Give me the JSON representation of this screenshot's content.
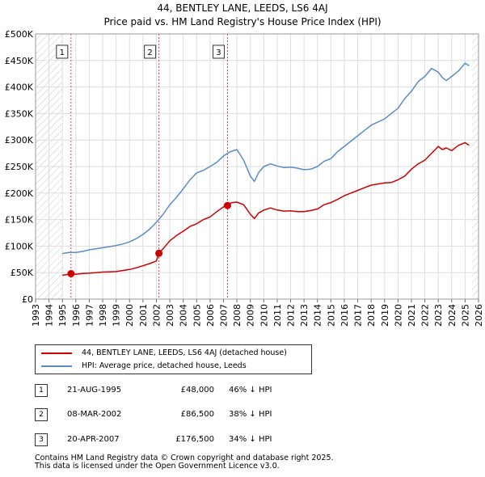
{
  "title_line1": "44, BENTLEY LANE, LEEDS, LS6 4AJ",
  "title_line2": "Price paid vs. HM Land Registry's House Price Index (HPI)",
  "chart_data": {
    "type": "line",
    "title": "Price paid vs. HM Land Registry's House Price Index (HPI)",
    "xlim": [
      1993,
      2026
    ],
    "ylim": [
      0,
      500000
    ],
    "x_ticks": [
      1993,
      1994,
      1995,
      1996,
      1997,
      1998,
      1999,
      2000,
      2001,
      2002,
      2003,
      2004,
      2005,
      2006,
      2007,
      2008,
      2009,
      2010,
      2011,
      2012,
      2013,
      2014,
      2015,
      2016,
      2017,
      2018,
      2019,
      2020,
      2021,
      2022,
      2023,
      2024,
      2025,
      2026
    ],
    "y_ticks": [
      {
        "value": 0,
        "label": "£0"
      },
      {
        "value": 50000,
        "label": "£50K"
      },
      {
        "value": 100000,
        "label": "£100K"
      },
      {
        "value": 150000,
        "label": "£150K"
      },
      {
        "value": 200000,
        "label": "£200K"
      },
      {
        "value": 250000,
        "label": "£250K"
      },
      {
        "value": 300000,
        "label": "£300K"
      },
      {
        "value": 350000,
        "label": "£350K"
      },
      {
        "value": 400000,
        "label": "£400K"
      },
      {
        "value": 450000,
        "label": "£450K"
      },
      {
        "value": 500000,
        "label": "£500K"
      }
    ],
    "hatched_before": 1995.0,
    "hatched_after": 2025.5,
    "series": [
      {
        "name": "44, BENTLEY LANE, LEEDS, LS6 4AJ (detached house)",
        "color": "#cc0000",
        "x": [
          1995.0,
          1995.3,
          1995.64,
          1996.0,
          1996.5,
          1997.0,
          1997.5,
          1998.0,
          1998.5,
          1999.0,
          1999.5,
          2000.0,
          2000.5,
          2001.0,
          2001.5,
          2002.0,
          2002.19,
          2002.5,
          2003.0,
          2003.5,
          2004.0,
          2004.5,
          2005.0,
          2005.5,
          2006.0,
          2006.5,
          2007.0,
          2007.3,
          2007.6,
          2008.0,
          2008.5,
          2009.0,
          2009.3,
          2009.6,
          2010.0,
          2010.5,
          2011.0,
          2011.5,
          2012.0,
          2012.5,
          2013.0,
          2013.5,
          2014.0,
          2014.5,
          2015.0,
          2015.5,
          2016.0,
          2016.5,
          2017.0,
          2017.5,
          2018.0,
          2018.5,
          2019.0,
          2019.5,
          2020.0,
          2020.5,
          2021.0,
          2021.5,
          2022.0,
          2022.5,
          2023.0,
          2023.3,
          2023.6,
          2024.0,
          2024.5,
          2025.0,
          2025.3
        ],
        "values": [
          45000,
          46000,
          48000,
          47000,
          48500,
          49000,
          50000,
          51000,
          51500,
          52000,
          54000,
          56000,
          59000,
          63000,
          67000,
          72000,
          86500,
          95000,
          110000,
          120000,
          128000,
          137000,
          142000,
          150000,
          155000,
          165000,
          174000,
          176500,
          182000,
          183000,
          178000,
          160000,
          152000,
          162000,
          168000,
          172000,
          168000,
          166000,
          166500,
          165000,
          165000,
          167000,
          170000,
          178000,
          182000,
          188000,
          195000,
          200000,
          205000,
          210000,
          215000,
          217000,
          219000,
          220000,
          225000,
          232000,
          245000,
          255000,
          262000,
          275000,
          288000,
          282000,
          285000,
          280000,
          290000,
          295000,
          290000
        ]
      },
      {
        "name": "HPI: Average price, detached house, Leeds",
        "color": "#5b8cc3",
        "x": [
          1995.0,
          1995.5,
          1996.0,
          1996.5,
          1997.0,
          1997.5,
          1998.0,
          1998.5,
          1999.0,
          1999.5,
          2000.0,
          2000.5,
          2001.0,
          2001.5,
          2002.0,
          2002.5,
          2003.0,
          2003.5,
          2004.0,
          2004.5,
          2005.0,
          2005.5,
          2006.0,
          2006.5,
          2007.0,
          2007.5,
          2008.0,
          2008.5,
          2009.0,
          2009.3,
          2009.6,
          2010.0,
          2010.5,
          2011.0,
          2011.5,
          2012.0,
          2012.5,
          2013.0,
          2013.5,
          2014.0,
          2014.5,
          2015.0,
          2015.5,
          2016.0,
          2016.5,
          2017.0,
          2017.5,
          2018.0,
          2018.5,
          2019.0,
          2019.5,
          2020.0,
          2020.5,
          2021.0,
          2021.5,
          2022.0,
          2022.5,
          2023.0,
          2023.3,
          2023.6,
          2024.0,
          2024.5,
          2025.0,
          2025.3
        ],
        "values": [
          86000,
          88000,
          88000,
          90000,
          93000,
          95000,
          97000,
          99000,
          101000,
          104000,
          108000,
          114000,
          122000,
          132000,
          145000,
          160000,
          178000,
          192000,
          208000,
          225000,
          238000,
          243000,
          250000,
          258000,
          270000,
          278000,
          282000,
          262000,
          232000,
          222000,
          238000,
          250000,
          255000,
          251000,
          248000,
          249000,
          247000,
          244000,
          245000,
          250000,
          260000,
          265000,
          278000,
          288000,
          298000,
          308000,
          318000,
          328000,
          334000,
          340000,
          350000,
          360000,
          378000,
          392000,
          410000,
          420000,
          435000,
          428000,
          418000,
          412000,
          420000,
          430000,
          445000,
          440000
        ]
      }
    ],
    "annotations": [
      {
        "label": "1",
        "x": 1995.64
      },
      {
        "label": "2",
        "x": 2002.19
      },
      {
        "label": "3",
        "x": 2007.3
      }
    ],
    "sale_points": [
      {
        "x": 1995.64,
        "y": 48000
      },
      {
        "x": 2002.19,
        "y": 86500
      },
      {
        "x": 2007.3,
        "y": 176500
      }
    ]
  },
  "legend": [
    {
      "label": "44, BENTLEY LANE, LEEDS, LS6 4AJ (detached house)",
      "color": "#cc0000"
    },
    {
      "label": "HPI: Average price, detached house, Leeds",
      "color": "#5b8cc3"
    }
  ],
  "transactions": [
    {
      "num": "1",
      "date": "21-AUG-1995",
      "price": "£48,000",
      "hpi": "46% ↓ HPI"
    },
    {
      "num": "2",
      "date": "08-MAR-2002",
      "price": "£86,500",
      "hpi": "38% ↓ HPI"
    },
    {
      "num": "3",
      "date": "20-APR-2007",
      "price": "£176,500",
      "hpi": "34% ↓ HPI"
    }
  ],
  "footer_line1": "Contains HM Land Registry data © Crown copyright and database right 2025.",
  "footer_line2": "This data is licensed under the Open Government Licence v3.0."
}
